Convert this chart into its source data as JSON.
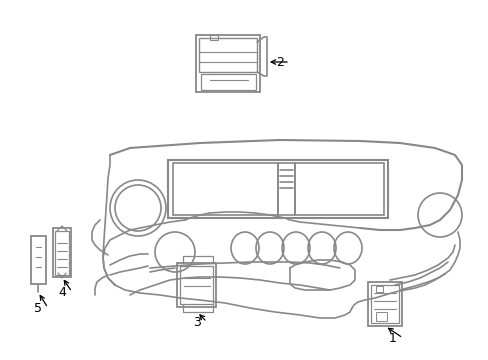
{
  "background_color": "#ffffff",
  "line_color": "#888888",
  "line_width": 1.2,
  "fig_width": 4.89,
  "fig_height": 3.6,
  "dpi": 100
}
